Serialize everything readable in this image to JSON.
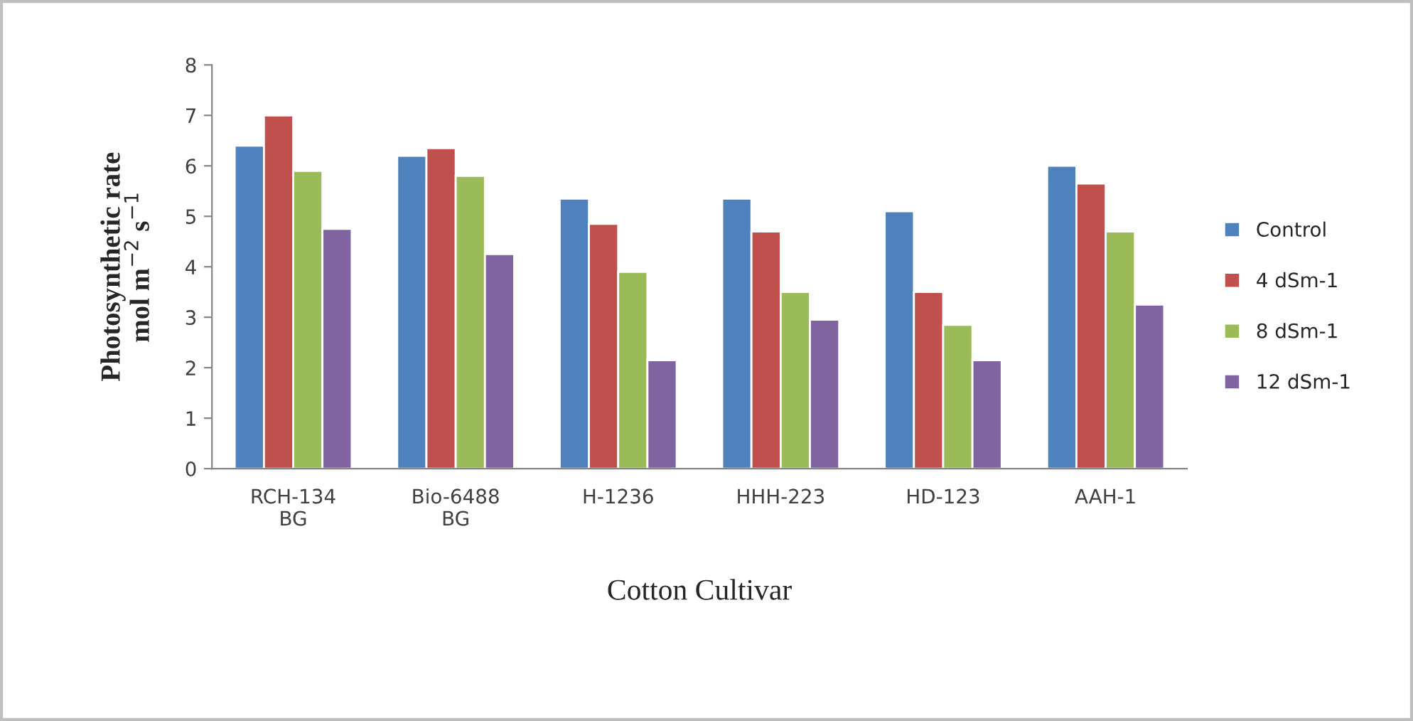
{
  "chart_data": {
    "type": "bar",
    "categories": [
      "RCH-134\nBG",
      "Bio-6488\nBG",
      "H-1236",
      "HHH-223",
      "HD-123",
      "AAH-1"
    ],
    "series": [
      {
        "name": "Control",
        "color": "#4f81bd",
        "values": [
          6.4,
          6.2,
          5.35,
          5.35,
          5.1,
          6.0
        ]
      },
      {
        "name": "4 dSm-1",
        "color": "#c0504d",
        "values": [
          7.0,
          6.35,
          4.85,
          4.7,
          3.5,
          5.65
        ]
      },
      {
        "name": "8 dSm-1",
        "color": "#9bbb59",
        "values": [
          5.9,
          5.8,
          3.9,
          3.5,
          2.85,
          4.7
        ]
      },
      {
        "name": "12 dSm-1",
        "color": "#8064a2",
        "values": [
          4.75,
          4.25,
          2.15,
          2.95,
          2.15,
          3.25
        ]
      }
    ],
    "xlabel": "Cotton Cultivar",
    "ylabel": "Photosynthetic rate\nmol m$^{−2}$ s$^{−1}$",
    "ylim": [
      0,
      8
    ],
    "yticks": [
      0,
      1,
      2,
      3,
      4,
      5,
      6,
      7,
      8
    ],
    "grid": false,
    "legend": "right"
  }
}
